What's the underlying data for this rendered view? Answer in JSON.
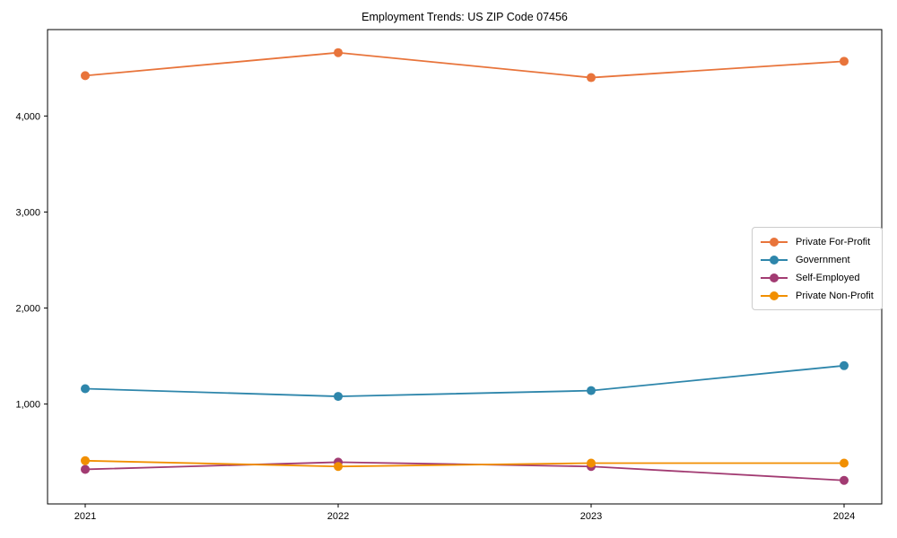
{
  "chart_data": {
    "type": "line",
    "title": "Employment Trends: US ZIP Code 07456",
    "xlabel": "",
    "ylabel": "",
    "categories": [
      "2021",
      "2022",
      "2023",
      "2024"
    ],
    "series": [
      {
        "name": "Private For-Profit",
        "color": "#E8743B",
        "values": [
          4420,
          4660,
          4400,
          4570
        ]
      },
      {
        "name": "Government",
        "color": "#2E86AB",
        "values": [
          1160,
          1080,
          1140,
          1400
        ]
      },
      {
        "name": "Self-Employed",
        "color": "#A23B72",
        "values": [
          320,
          395,
          350,
          205
        ]
      },
      {
        "name": "Private Non-Profit",
        "color": "#F18F01",
        "values": [
          410,
          350,
          385,
          385
        ]
      }
    ],
    "y_ticks": [
      {
        "value": 1000,
        "label": "1,000"
      },
      {
        "value": 2000,
        "label": "2,000"
      },
      {
        "value": 3000,
        "label": "3,000"
      },
      {
        "value": 4000,
        "label": "4,000"
      }
    ],
    "ylim": [
      -40,
      4900
    ],
    "grid": false,
    "legend_position": "center-right",
    "marker": "circle",
    "axis_color": "#000000",
    "legend_border_color": "#cccccc",
    "background_color": "#ffffff"
  }
}
